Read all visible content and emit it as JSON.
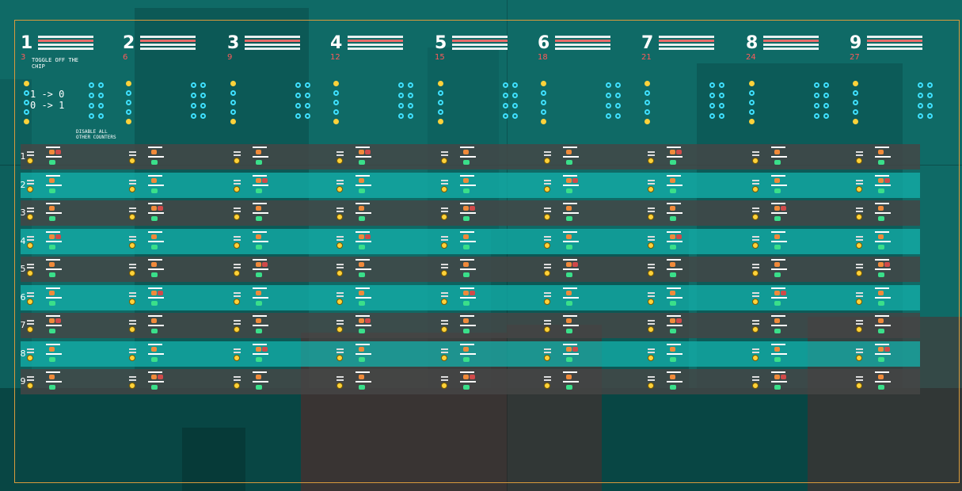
{
  "columns": [
    {
      "num": "1",
      "sub": "3"
    },
    {
      "num": "2",
      "sub": "6"
    },
    {
      "num": "3",
      "sub": "9"
    },
    {
      "num": "4",
      "sub": "12"
    },
    {
      "num": "5",
      "sub": "15"
    },
    {
      "num": "6",
      "sub": "18"
    },
    {
      "num": "7",
      "sub": "21"
    },
    {
      "num": "8",
      "sub": "24"
    },
    {
      "num": "9",
      "sub": "27"
    }
  ],
  "toggle_note": "TOGGLE OFF THE CHIP",
  "state_line_1": "1 -> 0",
  "state_line_2": "0 -> 1",
  "disable_note": "DISABLE ALL OTHER COUNTERS",
  "rows": [
    "1",
    "2",
    "3",
    "4",
    "5",
    "6",
    "7",
    "8",
    "9"
  ],
  "colors": {
    "accent": "#d89a3c",
    "row_dark": "#464646",
    "row_light": "#14b4af",
    "sub": "#ff5a5a",
    "coin": "#ffd23a",
    "cyan": "#3fe0ff"
  }
}
